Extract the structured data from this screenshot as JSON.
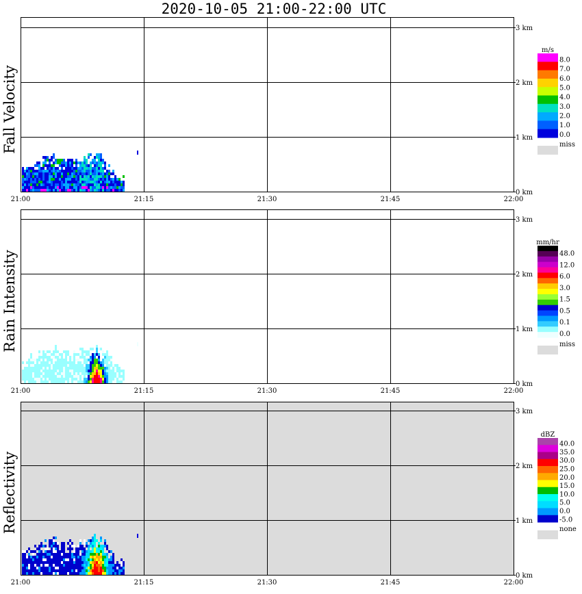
{
  "title": "2020-10-05   21:00-22:00 UTC",
  "x_ticks": [
    "21:00",
    "21:15",
    "21:30",
    "21:45",
    "22:00"
  ],
  "y_ticks": [
    "0 km",
    "1 km",
    "2 km",
    "3 km"
  ],
  "chart_data": [
    {
      "type": "heatmap",
      "title": "Fall Velocity",
      "ylabel": "Fall Velocity",
      "x_range": [
        "21:00",
        "22:00"
      ],
      "y_range_km": [
        0,
        3.0
      ],
      "grid": true,
      "legend": {
        "unit": "m/s",
        "colors": [
          "#ff00ff",
          "#ff0000",
          "#ff7a00",
          "#ffd200",
          "#c8ff00",
          "#00c000",
          "#00e0c0",
          "#00aaff",
          "#0060ff",
          "#0000dd"
        ],
        "labels": [
          "8.0",
          "7.0",
          "6.0",
          "5.0",
          "4.0",
          "3.0",
          "2.0",
          "1.0",
          "0.0"
        ],
        "miss_label": "miss",
        "miss_color": "#dcdcdc"
      },
      "background": "#ffffff",
      "echo_extent": {
        "time_start": "21:00",
        "time_end": "21:12.5",
        "max_height_km": 0.85
      }
    },
    {
      "type": "heatmap",
      "title": "Rain Intensity",
      "ylabel": "Rain Intensity",
      "x_range": [
        "21:00",
        "22:00"
      ],
      "y_range_km": [
        0,
        3.0
      ],
      "grid": true,
      "legend": {
        "unit": "mm/hr",
        "colors": [
          "#000000",
          "#550055",
          "#9900aa",
          "#cc00cc",
          "#ff0099",
          "#ff0000",
          "#ff6600",
          "#ffcc00",
          "#ffff00",
          "#99ff33",
          "#33cc00",
          "#0000cc",
          "#0044ff",
          "#0099ff",
          "#33ccff",
          "#99ffff",
          "#eeffff"
        ],
        "labels": [
          "48.0",
          "12.0",
          "6.0",
          "3.0",
          "1.5",
          "0.5",
          "0.1",
          "0.0"
        ],
        "miss_label": "miss",
        "miss_color": "#dcdcdc"
      },
      "background": "#ffffff",
      "echo_extent": {
        "time_start": "21:00",
        "time_end": "21:12.5",
        "max_height_km": 0.8
      }
    },
    {
      "type": "heatmap",
      "title": "Reflectivity",
      "ylabel": "Reflectivity",
      "x_range": [
        "21:00",
        "22:00"
      ],
      "y_range_km": [
        0,
        3.0
      ],
      "grid": true,
      "legend": {
        "unit": "dBZ",
        "colors": [
          "#aa44aa",
          "#dd00dd",
          "#aa0088",
          "#ff0000",
          "#ff6600",
          "#ffaa00",
          "#ffff00",
          "#00bb00",
          "#00ffee",
          "#00ddff",
          "#0099ff",
          "#0000cc"
        ],
        "labels": [
          "40.0",
          "35.0",
          "30.0",
          "25.0",
          "20.0",
          "15.0",
          "10.0",
          "5.0",
          "0.0",
          "-5.0"
        ],
        "miss_label": "none",
        "miss_color": "#dcdcdc"
      },
      "background": "#dcdcdc",
      "echo_extent": {
        "time_start": "21:00",
        "time_end": "21:12.5",
        "max_height_km": 0.85
      }
    }
  ]
}
